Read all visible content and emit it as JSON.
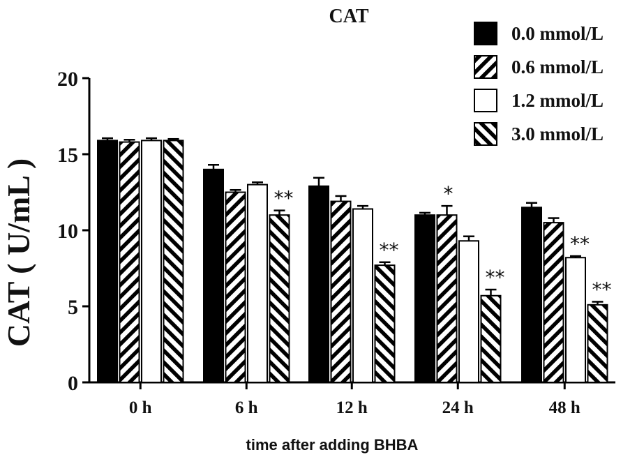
{
  "chart_data": {
    "type": "bar",
    "title": "CAT",
    "xlabel": "time after adding BHBA",
    "ylabel": "CAT ( U/mL )",
    "ylim": [
      0,
      20
    ],
    "yticks": [
      "0",
      "5",
      "10",
      "15",
      "20"
    ],
    "categories": [
      "0 h",
      "6 h",
      "12 h",
      "24 h",
      "48 h"
    ],
    "legend_position": "top-right",
    "grid": false,
    "series": [
      {
        "name": "0.0 mmol/L",
        "fill": "solid",
        "values": [
          15.9,
          14.0,
          12.9,
          11.0,
          11.5
        ],
        "errors": [
          0.15,
          0.3,
          0.55,
          0.15,
          0.3
        ],
        "annotations": [
          "",
          "",
          "",
          "",
          ""
        ]
      },
      {
        "name": "0.6 mmol/L",
        "fill": "backslash-hatch",
        "values": [
          15.8,
          12.5,
          11.9,
          11.0,
          10.5
        ],
        "errors": [
          0.15,
          0.15,
          0.35,
          0.6,
          0.3
        ],
        "annotations": [
          "",
          "",
          "",
          "*",
          ""
        ]
      },
      {
        "name": "1.2 mmol/L",
        "fill": "white",
        "values": [
          15.9,
          13.0,
          11.4,
          9.3,
          8.2
        ],
        "errors": [
          0.15,
          0.15,
          0.2,
          0.3,
          0.1
        ],
        "annotations": [
          "",
          "",
          "",
          "",
          "**"
        ]
      },
      {
        "name": "3.0 mmol/L",
        "fill": "slash-hatch",
        "values": [
          15.9,
          11.0,
          7.7,
          5.7,
          5.1
        ],
        "errors": [
          0.1,
          0.3,
          0.2,
          0.4,
          0.2
        ],
        "annotations": [
          "",
          "**",
          "**",
          "**",
          "**"
        ]
      }
    ]
  },
  "colors": {
    "bar_ink": "#000000",
    "bar_white": "#ffffff",
    "text": "#111111"
  }
}
